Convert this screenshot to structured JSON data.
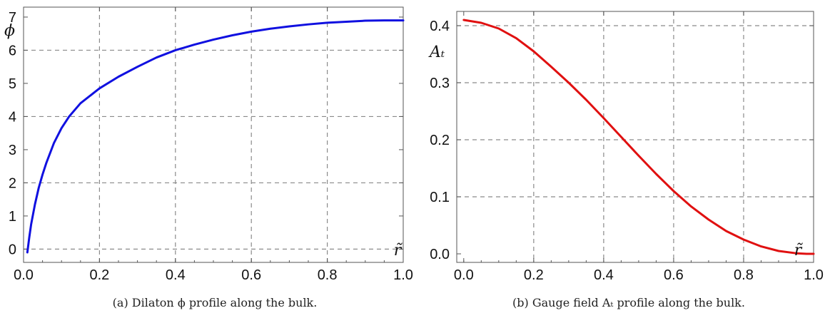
{
  "chart_data": [
    {
      "type": "line",
      "caption": "(a) Dilaton ϕ profile along the bulk.",
      "xlabel": "r̃",
      "ylabel": "ϕ",
      "xlim": [
        0,
        1.0
      ],
      "ylim": [
        -0.4,
        7.3
      ],
      "xticks": [
        0.0,
        0.2,
        0.4,
        0.6,
        0.8,
        1.0
      ],
      "xtick_labels": [
        "0.0",
        "0.2",
        "0.4",
        "0.6",
        "0.8",
        "1.0"
      ],
      "yticks": [
        0,
        1,
        2,
        3,
        4,
        5,
        6,
        7
      ],
      "ytick_labels": [
        "0",
        "1",
        "2",
        "3",
        "4",
        "5",
        "6",
        "7"
      ],
      "xgrid": [
        0.2,
        0.4,
        0.6,
        0.8
      ],
      "ygrid": [
        0,
        2,
        4,
        6
      ],
      "grid": true,
      "series": [
        {
          "color": "#1010e0",
          "x": [
            0.01,
            0.015,
            0.02,
            0.03,
            0.04,
            0.05,
            0.06,
            0.08,
            0.1,
            0.12,
            0.15,
            0.2,
            0.25,
            0.3,
            0.35,
            0.4,
            0.45,
            0.5,
            0.55,
            0.6,
            0.65,
            0.7,
            0.75,
            0.8,
            0.85,
            0.9,
            0.95,
            1.0
          ],
          "y": [
            -0.1,
            0.35,
            0.75,
            1.35,
            1.85,
            2.25,
            2.6,
            3.2,
            3.65,
            4.0,
            4.4,
            4.85,
            5.2,
            5.5,
            5.78,
            6.0,
            6.17,
            6.32,
            6.45,
            6.56,
            6.65,
            6.72,
            6.78,
            6.83,
            6.86,
            6.89,
            6.9,
            6.9
          ]
        }
      ]
    },
    {
      "type": "line",
      "caption": "(b) Gauge field Aₜ profile along the bulk.",
      "xlabel": "r̃",
      "ylabel": "Aₜ",
      "xlim": [
        -0.02,
        1.0
      ],
      "ylim": [
        -0.015,
        0.425
      ],
      "xticks": [
        0.0,
        0.2,
        0.4,
        0.6,
        0.8,
        1.0
      ],
      "xtick_labels": [
        "0.0",
        "0.2",
        "0.4",
        "0.6",
        "0.8",
        "1.0"
      ],
      "yticks": [
        0.0,
        0.1,
        0.2,
        0.3,
        0.4
      ],
      "ytick_labels": [
        "0.0",
        "0.1",
        "0.2",
        "0.3",
        "0.4"
      ],
      "xgrid": [
        0.2,
        0.4,
        0.6,
        0.8
      ],
      "ygrid": [
        0.1,
        0.2,
        0.3,
        0.4
      ],
      "grid": true,
      "series": [
        {
          "color": "#e01010",
          "x": [
            0.0,
            0.05,
            0.1,
            0.15,
            0.2,
            0.25,
            0.3,
            0.35,
            0.4,
            0.45,
            0.5,
            0.55,
            0.6,
            0.65,
            0.7,
            0.75,
            0.8,
            0.85,
            0.9,
            0.95,
            0.98,
            1.0
          ],
          "y": [
            0.41,
            0.405,
            0.395,
            0.378,
            0.355,
            0.328,
            0.3,
            0.27,
            0.238,
            0.205,
            0.172,
            0.14,
            0.11,
            0.083,
            0.06,
            0.04,
            0.025,
            0.013,
            0.005,
            0.001,
            0.0,
            0.0
          ]
        }
      ]
    }
  ]
}
